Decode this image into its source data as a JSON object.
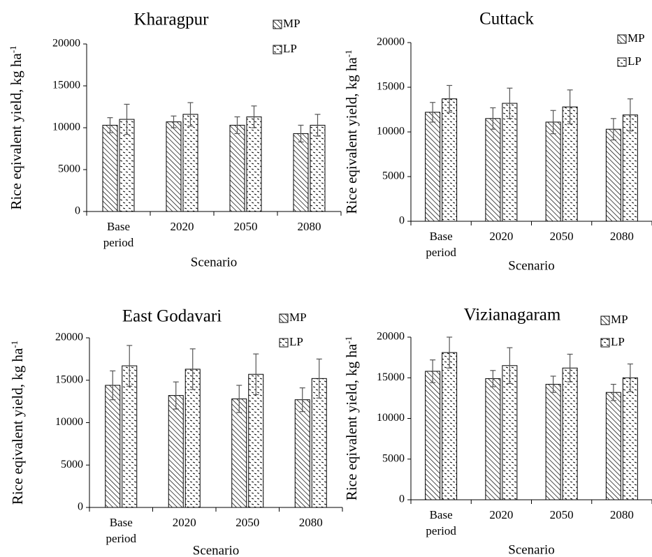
{
  "chart_data": [
    {
      "type": "bar",
      "title": "Kharagpur",
      "xlabel": "Scenario",
      "ylabel": "Rice eqivalent yield, kg ha",
      "ylabel_sup": "-1",
      "categories": [
        [
          "Base",
          "period"
        ],
        [
          "2020"
        ],
        [
          "2050"
        ],
        [
          "2080"
        ]
      ],
      "ylim": [
        0,
        20000
      ],
      "yticks": [
        0,
        5000,
        10000,
        15000,
        20000
      ],
      "legend_position": "top-right",
      "series": [
        {
          "name": "MP",
          "values": [
            10300,
            10700,
            10300,
            9300
          ],
          "errors": [
            900,
            700,
            1000,
            1000
          ]
        },
        {
          "name": "LP",
          "values": [
            11000,
            11600,
            11300,
            10300
          ],
          "errors": [
            1800,
            1400,
            1300,
            1300
          ]
        }
      ]
    },
    {
      "type": "bar",
      "title": "Cuttack",
      "xlabel": "Scenario",
      "ylabel": "Rice eqivalent yield, kg ha",
      "ylabel_sup": "-1",
      "categories": [
        [
          "Base",
          "period"
        ],
        [
          "2020"
        ],
        [
          "2050"
        ],
        [
          "2080"
        ]
      ],
      "ylim": [
        0,
        20000
      ],
      "yticks": [
        0,
        5000,
        10000,
        15000,
        20000
      ],
      "legend_position": "top-right",
      "series": [
        {
          "name": "MP",
          "values": [
            12200,
            11500,
            11100,
            10300
          ],
          "errors": [
            1100,
            1200,
            1300,
            1200
          ]
        },
        {
          "name": "LP",
          "values": [
            13700,
            13200,
            12800,
            11900
          ],
          "errors": [
            1500,
            1700,
            1900,
            1800
          ]
        }
      ]
    },
    {
      "type": "bar",
      "title": "East Godavari",
      "xlabel": "Scenario",
      "ylabel": "Rice eqivalent yield, kg ha",
      "ylabel_sup": "-1",
      "categories": [
        [
          "Base",
          "period"
        ],
        [
          "2020"
        ],
        [
          "2050"
        ],
        [
          "2080"
        ]
      ],
      "ylim": [
        0,
        20000
      ],
      "yticks": [
        0,
        5000,
        10000,
        15000,
        20000
      ],
      "legend_position": "top-right",
      "series": [
        {
          "name": "MP",
          "values": [
            14400,
            13200,
            12800,
            12700
          ],
          "errors": [
            1700,
            1600,
            1600,
            1400
          ]
        },
        {
          "name": "LP",
          "values": [
            16700,
            16300,
            15700,
            15200
          ],
          "errors": [
            2400,
            2400,
            2400,
            2300
          ]
        }
      ]
    },
    {
      "type": "bar",
      "title": "Vizianagaram",
      "xlabel": "Scenario",
      "ylabel": "Rice eqivalent yield, kg ha",
      "ylabel_sup": "-1",
      "categories": [
        [
          "Base",
          "period"
        ],
        [
          "2020"
        ],
        [
          "2050"
        ],
        [
          "2080"
        ]
      ],
      "ylim": [
        0,
        20000
      ],
      "yticks": [
        0,
        5000,
        10000,
        15000,
        20000
      ],
      "legend_position": "top-right",
      "series": [
        {
          "name": "MP",
          "values": [
            15800,
            14900,
            14200,
            13200
          ],
          "errors": [
            1400,
            1000,
            1000,
            1000
          ]
        },
        {
          "name": "LP",
          "values": [
            18100,
            16500,
            16200,
            15000
          ],
          "errors": [
            1900,
            2200,
            1700,
            1700
          ]
        }
      ]
    }
  ]
}
